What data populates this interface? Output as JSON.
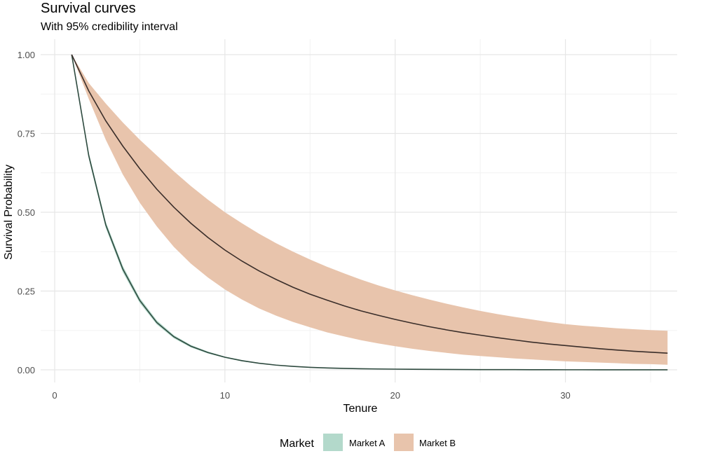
{
  "chart_data": {
    "type": "area",
    "title": "Survival curves",
    "subtitle": "With 95% credibility interval",
    "xlabel": "Tenure",
    "ylabel": "Survival Probability",
    "xlim": [
      0,
      36
    ],
    "ylim": [
      0,
      1
    ],
    "x_ticks": [
      0,
      10,
      20,
      30
    ],
    "y_ticks": [
      0.0,
      0.25,
      0.5,
      0.75,
      1.0
    ],
    "x_tick_labels": [
      "0",
      "10",
      "20",
      "30"
    ],
    "y_tick_labels": [
      "0.00",
      "0.25",
      "0.50",
      "0.75",
      "1.00"
    ],
    "grid": true,
    "legend": {
      "title": "Market",
      "position": "bottom",
      "entries": [
        "Market A",
        "Market B"
      ]
    },
    "x": [
      1,
      2,
      3,
      4,
      5,
      6,
      7,
      8,
      9,
      10,
      11,
      12,
      13,
      14,
      15,
      16,
      17,
      18,
      19,
      20,
      21,
      22,
      23,
      24,
      25,
      26,
      27,
      28,
      29,
      30,
      31,
      32,
      33,
      34,
      35,
      36
    ],
    "series": [
      {
        "name": "Market A",
        "color": "#B3D9CB",
        "line_color": "#2E4A3F",
        "values": [
          1.0,
          0.68,
          0.46,
          0.32,
          0.22,
          0.15,
          0.105,
          0.075,
          0.055,
          0.04,
          0.029,
          0.021,
          0.015,
          0.011,
          0.008,
          0.006,
          0.0045,
          0.0035,
          0.0028,
          0.0022,
          0.0018,
          0.0015,
          0.0012,
          0.001,
          0.0008,
          0.0007,
          0.0006,
          0.0005,
          0.0004,
          0.0003,
          0.0003,
          0.0002,
          0.0002,
          0.0002,
          0.0001,
          0.0001
        ],
        "lower": [
          1.0,
          0.67,
          0.45,
          0.31,
          0.212,
          0.144,
          0.1,
          0.071,
          0.052,
          0.038,
          0.027,
          0.02,
          0.014,
          0.01,
          0.0075,
          0.0056,
          0.0042,
          0.0032,
          0.0026,
          0.002,
          0.0016,
          0.0013,
          0.0011,
          0.0009,
          0.0007,
          0.0006,
          0.0005,
          0.0004,
          0.0003,
          0.0003,
          0.0002,
          0.0002,
          0.0002,
          0.0001,
          0.0001,
          0.0001
        ],
        "upper": [
          1.0,
          0.69,
          0.47,
          0.33,
          0.228,
          0.157,
          0.11,
          0.079,
          0.058,
          0.042,
          0.031,
          0.022,
          0.016,
          0.012,
          0.0085,
          0.0064,
          0.0048,
          0.0038,
          0.003,
          0.0024,
          0.002,
          0.0017,
          0.0013,
          0.0011,
          0.0009,
          0.0008,
          0.0007,
          0.0006,
          0.0005,
          0.0004,
          0.0004,
          0.0003,
          0.0003,
          0.0002,
          0.0002,
          0.0002
        ]
      },
      {
        "name": "Market B",
        "color": "#E8C4AC",
        "line_color": "#3A2E2A",
        "values": [
          1.0,
          0.885,
          0.79,
          0.71,
          0.638,
          0.573,
          0.516,
          0.465,
          0.42,
          0.38,
          0.345,
          0.314,
          0.287,
          0.262,
          0.24,
          0.221,
          0.203,
          0.187,
          0.173,
          0.16,
          0.148,
          0.137,
          0.127,
          0.118,
          0.11,
          0.102,
          0.095,
          0.088,
          0.082,
          0.077,
          0.072,
          0.067,
          0.063,
          0.059,
          0.056,
          0.053
        ],
        "lower": [
          1.0,
          0.86,
          0.73,
          0.62,
          0.53,
          0.455,
          0.39,
          0.337,
          0.293,
          0.255,
          0.223,
          0.195,
          0.172,
          0.152,
          0.135,
          0.119,
          0.106,
          0.094,
          0.084,
          0.075,
          0.067,
          0.06,
          0.054,
          0.048,
          0.044,
          0.04,
          0.036,
          0.033,
          0.03,
          0.027,
          0.025,
          0.023,
          0.021,
          0.019,
          0.018,
          0.016
        ],
        "upper": [
          1.0,
          0.91,
          0.845,
          0.785,
          0.73,
          0.68,
          0.63,
          0.583,
          0.54,
          0.5,
          0.465,
          0.432,
          0.402,
          0.375,
          0.35,
          0.327,
          0.306,
          0.286,
          0.268,
          0.252,
          0.237,
          0.223,
          0.21,
          0.198,
          0.187,
          0.177,
          0.168,
          0.16,
          0.152,
          0.145,
          0.14,
          0.136,
          0.132,
          0.129,
          0.126,
          0.124
        ]
      }
    ]
  }
}
